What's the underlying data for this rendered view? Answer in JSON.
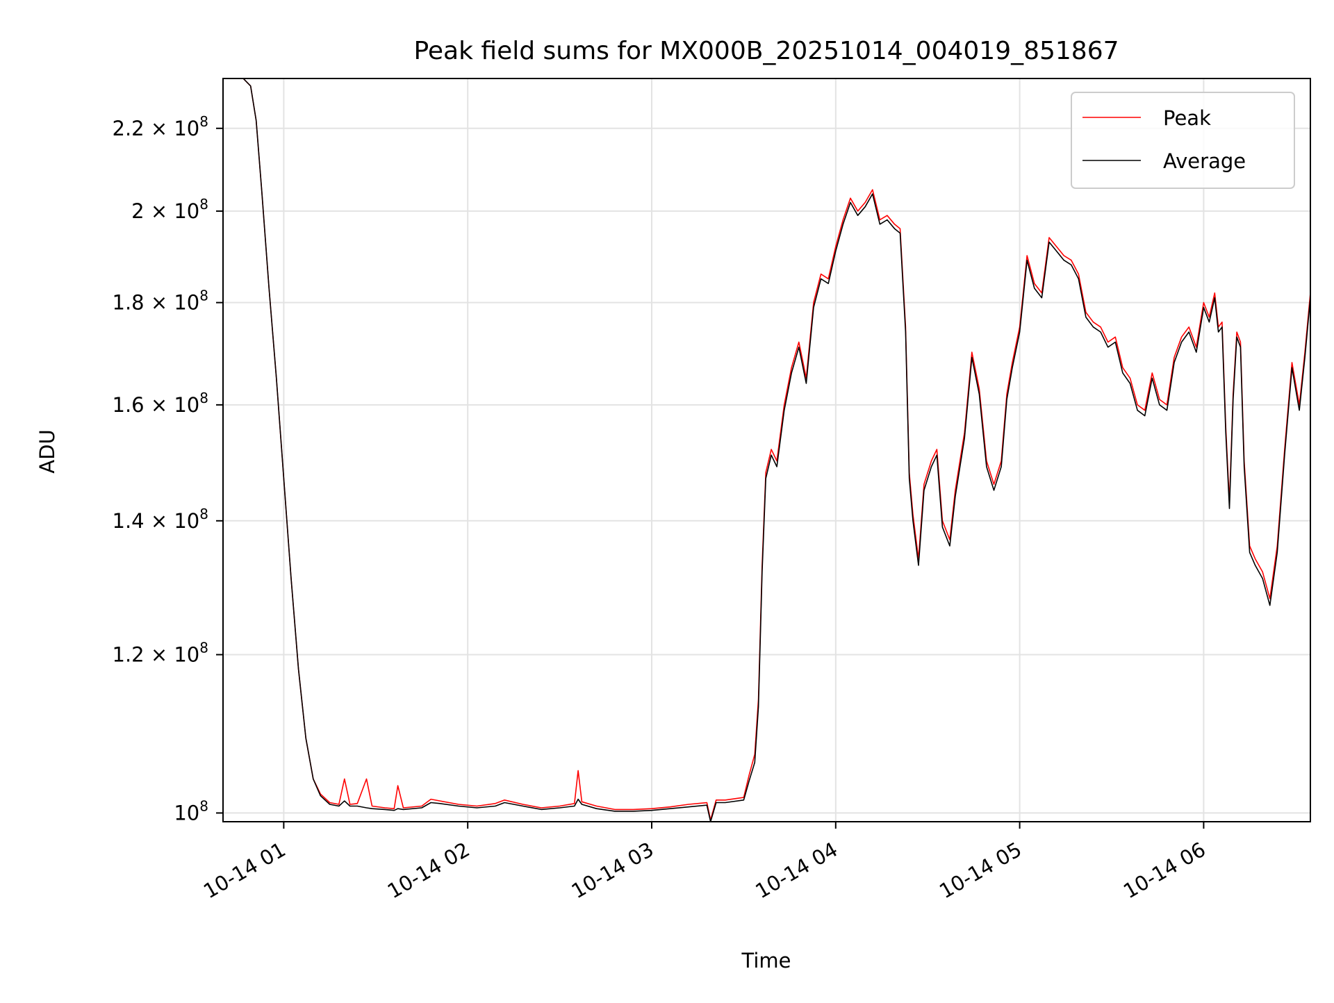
{
  "chart_data": {
    "type": "line",
    "title": "Peak field sums for MX000B_20251014_004019_851867",
    "xlabel": "Time",
    "ylabel": "ADU",
    "yscale": "log",
    "x_unit": "hours since 2025-10-14 00:00",
    "xlim": [
      0.67,
      6.58
    ],
    "ylim": [
      99000000,
      233000000
    ],
    "grid": true,
    "legend_position": "top-right",
    "x_ticks": [
      {
        "value": 1,
        "label": "10-14 01"
      },
      {
        "value": 2,
        "label": "10-14 02"
      },
      {
        "value": 3,
        "label": "10-14 03"
      },
      {
        "value": 4,
        "label": "10-14 04"
      },
      {
        "value": 5,
        "label": "10-14 05"
      },
      {
        "value": 6,
        "label": "10-14 06"
      }
    ],
    "y_ticks": [
      {
        "value": 100000000,
        "mantissa": "10",
        "exponent": "8"
      },
      {
        "value": 120000000,
        "mantissa": "1.2 × 10",
        "exponent": "8"
      },
      {
        "value": 140000000,
        "mantissa": "1.4 × 10",
        "exponent": "8"
      },
      {
        "value": 160000000,
        "mantissa": "1.6 × 10",
        "exponent": "8"
      },
      {
        "value": 180000000,
        "mantissa": "1.8 × 10",
        "exponent": "8"
      },
      {
        "value": 200000000,
        "mantissa": "2 × 10",
        "exponent": "8"
      },
      {
        "value": 220000000,
        "mantissa": "2.2 × 10",
        "exponent": "8"
      }
    ],
    "series": [
      {
        "name": "Peak",
        "color": "#ff0000",
        "points": [
          [
            0.67,
            233000000
          ],
          [
            0.78,
            233000000
          ],
          [
            0.82,
            231000000
          ],
          [
            0.85,
            222000000
          ],
          [
            0.88,
            205000000
          ],
          [
            0.92,
            183000000
          ],
          [
            0.96,
            165000000
          ],
          [
            1.0,
            147000000
          ],
          [
            1.04,
            131000000
          ],
          [
            1.08,
            118000000
          ],
          [
            1.12,
            109000000
          ],
          [
            1.16,
            104000000
          ],
          [
            1.2,
            102200000
          ],
          [
            1.25,
            101200000
          ],
          [
            1.3,
            101000000
          ],
          [
            1.33,
            104000000
          ],
          [
            1.36,
            101000000
          ],
          [
            1.4,
            101100000
          ],
          [
            1.45,
            104000000
          ],
          [
            1.48,
            100800000
          ],
          [
            1.55,
            100600000
          ],
          [
            1.6,
            100500000
          ],
          [
            1.62,
            103200000
          ],
          [
            1.65,
            100600000
          ],
          [
            1.75,
            100800000
          ],
          [
            1.8,
            101600000
          ],
          [
            1.85,
            101400000
          ],
          [
            1.95,
            101000000
          ],
          [
            2.05,
            100800000
          ],
          [
            2.15,
            101100000
          ],
          [
            2.2,
            101500000
          ],
          [
            2.3,
            101000000
          ],
          [
            2.4,
            100600000
          ],
          [
            2.5,
            100800000
          ],
          [
            2.58,
            101100000
          ],
          [
            2.6,
            105000000
          ],
          [
            2.62,
            101300000
          ],
          [
            2.7,
            100800000
          ],
          [
            2.8,
            100400000
          ],
          [
            2.9,
            100400000
          ],
          [
            3.0,
            100500000
          ],
          [
            3.1,
            100700000
          ],
          [
            3.2,
            101000000
          ],
          [
            3.3,
            101200000
          ],
          [
            3.32,
            99200000
          ],
          [
            3.35,
            101500000
          ],
          [
            3.4,
            101500000
          ],
          [
            3.5,
            101800000
          ],
          [
            3.53,
            104500000
          ],
          [
            3.56,
            107000000
          ],
          [
            3.58,
            114000000
          ],
          [
            3.6,
            133000000
          ],
          [
            3.62,
            148000000
          ],
          [
            3.65,
            152000000
          ],
          [
            3.68,
            150000000
          ],
          [
            3.72,
            160000000
          ],
          [
            3.76,
            167000000
          ],
          [
            3.8,
            172000000
          ],
          [
            3.84,
            165000000
          ],
          [
            3.88,
            180000000
          ],
          [
            3.92,
            186000000
          ],
          [
            3.96,
            185000000
          ],
          [
            4.0,
            192000000
          ],
          [
            4.04,
            198000000
          ],
          [
            4.08,
            203000000
          ],
          [
            4.12,
            200000000
          ],
          [
            4.16,
            202000000
          ],
          [
            4.2,
            205000000
          ],
          [
            4.24,
            198000000
          ],
          [
            4.28,
            199000000
          ],
          [
            4.32,
            197000000
          ],
          [
            4.35,
            196000000
          ],
          [
            4.38,
            175000000
          ],
          [
            4.4,
            148000000
          ],
          [
            4.42,
            141000000
          ],
          [
            4.45,
            134000000
          ],
          [
            4.48,
            146000000
          ],
          [
            4.52,
            150000000
          ],
          [
            4.55,
            152000000
          ],
          [
            4.58,
            140000000
          ],
          [
            4.62,
            137000000
          ],
          [
            4.65,
            145000000
          ],
          [
            4.7,
            155000000
          ],
          [
            4.74,
            170000000
          ],
          [
            4.78,
            163000000
          ],
          [
            4.82,
            150000000
          ],
          [
            4.86,
            146000000
          ],
          [
            4.9,
            150000000
          ],
          [
            4.93,
            162000000
          ],
          [
            4.96,
            168000000
          ],
          [
            5.0,
            175000000
          ],
          [
            5.04,
            190000000
          ],
          [
            5.08,
            184000000
          ],
          [
            5.12,
            182000000
          ],
          [
            5.16,
            194000000
          ],
          [
            5.2,
            192000000
          ],
          [
            5.24,
            190000000
          ],
          [
            5.28,
            189000000
          ],
          [
            5.32,
            186000000
          ],
          [
            5.36,
            178000000
          ],
          [
            5.4,
            176000000
          ],
          [
            5.44,
            175000000
          ],
          [
            5.48,
            172000000
          ],
          [
            5.52,
            173000000
          ],
          [
            5.56,
            167000000
          ],
          [
            5.6,
            165000000
          ],
          [
            5.64,
            160000000
          ],
          [
            5.68,
            159000000
          ],
          [
            5.72,
            166000000
          ],
          [
            5.76,
            161000000
          ],
          [
            5.8,
            160000000
          ],
          [
            5.84,
            169000000
          ],
          [
            5.88,
            173000000
          ],
          [
            5.92,
            175000000
          ],
          [
            5.96,
            171000000
          ],
          [
            6.0,
            180000000
          ],
          [
            6.03,
            177000000
          ],
          [
            6.06,
            182000000
          ],
          [
            6.08,
            175000000
          ],
          [
            6.1,
            176000000
          ],
          [
            6.12,
            156000000
          ],
          [
            6.14,
            143000000
          ],
          [
            6.16,
            162000000
          ],
          [
            6.18,
            174000000
          ],
          [
            6.2,
            172000000
          ],
          [
            6.22,
            150000000
          ],
          [
            6.25,
            136000000
          ],
          [
            6.28,
            134000000
          ],
          [
            6.32,
            132000000
          ],
          [
            6.36,
            128000000
          ],
          [
            6.4,
            136000000
          ],
          [
            6.44,
            152000000
          ],
          [
            6.48,
            168000000
          ],
          [
            6.52,
            160000000
          ],
          [
            6.55,
            170000000
          ],
          [
            6.58,
            182000000
          ]
        ]
      },
      {
        "name": "Average",
        "color": "#000000",
        "points": [
          [
            0.67,
            233000000
          ],
          [
            0.78,
            233000000
          ],
          [
            0.82,
            231000000
          ],
          [
            0.85,
            222000000
          ],
          [
            0.88,
            205000000
          ],
          [
            0.92,
            183000000
          ],
          [
            0.96,
            165000000
          ],
          [
            1.0,
            147000000
          ],
          [
            1.04,
            131000000
          ],
          [
            1.08,
            118000000
          ],
          [
            1.12,
            109000000
          ],
          [
            1.16,
            104000000
          ],
          [
            1.2,
            102000000
          ],
          [
            1.25,
            101000000
          ],
          [
            1.3,
            100800000
          ],
          [
            1.33,
            101400000
          ],
          [
            1.36,
            100800000
          ],
          [
            1.4,
            100800000
          ],
          [
            1.45,
            100600000
          ],
          [
            1.48,
            100500000
          ],
          [
            1.55,
            100400000
          ],
          [
            1.6,
            100300000
          ],
          [
            1.62,
            100500000
          ],
          [
            1.65,
            100400000
          ],
          [
            1.75,
            100600000
          ],
          [
            1.8,
            101200000
          ],
          [
            1.85,
            101100000
          ],
          [
            1.95,
            100800000
          ],
          [
            2.05,
            100600000
          ],
          [
            2.15,
            100800000
          ],
          [
            2.2,
            101200000
          ],
          [
            2.3,
            100800000
          ],
          [
            2.4,
            100400000
          ],
          [
            2.5,
            100600000
          ],
          [
            2.58,
            100800000
          ],
          [
            2.6,
            101600000
          ],
          [
            2.62,
            101000000
          ],
          [
            2.7,
            100500000
          ],
          [
            2.8,
            100200000
          ],
          [
            2.9,
            100200000
          ],
          [
            3.0,
            100300000
          ],
          [
            3.1,
            100500000
          ],
          [
            3.2,
            100700000
          ],
          [
            3.3,
            100900000
          ],
          [
            3.32,
            99000000
          ],
          [
            3.35,
            101200000
          ],
          [
            3.4,
            101200000
          ],
          [
            3.5,
            101500000
          ],
          [
            3.53,
            103800000
          ],
          [
            3.56,
            106000000
          ],
          [
            3.58,
            113000000
          ],
          [
            3.6,
            132000000
          ],
          [
            3.62,
            147000000
          ],
          [
            3.65,
            151000000
          ],
          [
            3.68,
            149000000
          ],
          [
            3.72,
            159000000
          ],
          [
            3.76,
            166000000
          ],
          [
            3.8,
            171000000
          ],
          [
            3.84,
            164000000
          ],
          [
            3.88,
            179000000
          ],
          [
            3.92,
            185000000
          ],
          [
            3.96,
            184000000
          ],
          [
            4.0,
            191000000
          ],
          [
            4.04,
            197000000
          ],
          [
            4.08,
            202000000
          ],
          [
            4.12,
            199000000
          ],
          [
            4.16,
            201000000
          ],
          [
            4.2,
            204000000
          ],
          [
            4.24,
            197000000
          ],
          [
            4.28,
            198000000
          ],
          [
            4.32,
            196000000
          ],
          [
            4.35,
            195000000
          ],
          [
            4.38,
            174000000
          ],
          [
            4.4,
            147000000
          ],
          [
            4.42,
            140000000
          ],
          [
            4.45,
            133000000
          ],
          [
            4.48,
            145000000
          ],
          [
            4.52,
            149000000
          ],
          [
            4.55,
            151000000
          ],
          [
            4.58,
            139000000
          ],
          [
            4.62,
            136000000
          ],
          [
            4.65,
            144000000
          ],
          [
            4.7,
            154000000
          ],
          [
            4.74,
            169000000
          ],
          [
            4.78,
            162000000
          ],
          [
            4.82,
            149000000
          ],
          [
            4.86,
            145000000
          ],
          [
            4.9,
            149000000
          ],
          [
            4.93,
            161000000
          ],
          [
            4.96,
            167000000
          ],
          [
            5.0,
            174000000
          ],
          [
            5.04,
            189000000
          ],
          [
            5.08,
            183000000
          ],
          [
            5.12,
            181000000
          ],
          [
            5.16,
            193000000
          ],
          [
            5.2,
            191000000
          ],
          [
            5.24,
            189000000
          ],
          [
            5.28,
            188000000
          ],
          [
            5.32,
            185000000
          ],
          [
            5.36,
            177000000
          ],
          [
            5.4,
            175000000
          ],
          [
            5.44,
            174000000
          ],
          [
            5.48,
            171000000
          ],
          [
            5.52,
            172000000
          ],
          [
            5.56,
            166000000
          ],
          [
            5.6,
            164000000
          ],
          [
            5.64,
            159000000
          ],
          [
            5.68,
            158000000
          ],
          [
            5.72,
            165000000
          ],
          [
            5.76,
            160000000
          ],
          [
            5.8,
            159000000
          ],
          [
            5.84,
            168000000
          ],
          [
            5.88,
            172000000
          ],
          [
            5.92,
            174000000
          ],
          [
            5.96,
            170000000
          ],
          [
            6.0,
            179000000
          ],
          [
            6.03,
            176000000
          ],
          [
            6.06,
            181000000
          ],
          [
            6.08,
            174000000
          ],
          [
            6.1,
            175000000
          ],
          [
            6.12,
            155000000
          ],
          [
            6.14,
            142000000
          ],
          [
            6.16,
            161000000
          ],
          [
            6.18,
            173000000
          ],
          [
            6.2,
            171000000
          ],
          [
            6.22,
            149000000
          ],
          [
            6.25,
            135000000
          ],
          [
            6.28,
            133000000
          ],
          [
            6.32,
            131000000
          ],
          [
            6.36,
            127000000
          ],
          [
            6.4,
            135000000
          ],
          [
            6.44,
            151000000
          ],
          [
            6.48,
            167000000
          ],
          [
            6.52,
            159000000
          ],
          [
            6.55,
            169000000
          ],
          [
            6.58,
            181000000
          ]
        ]
      }
    ]
  }
}
